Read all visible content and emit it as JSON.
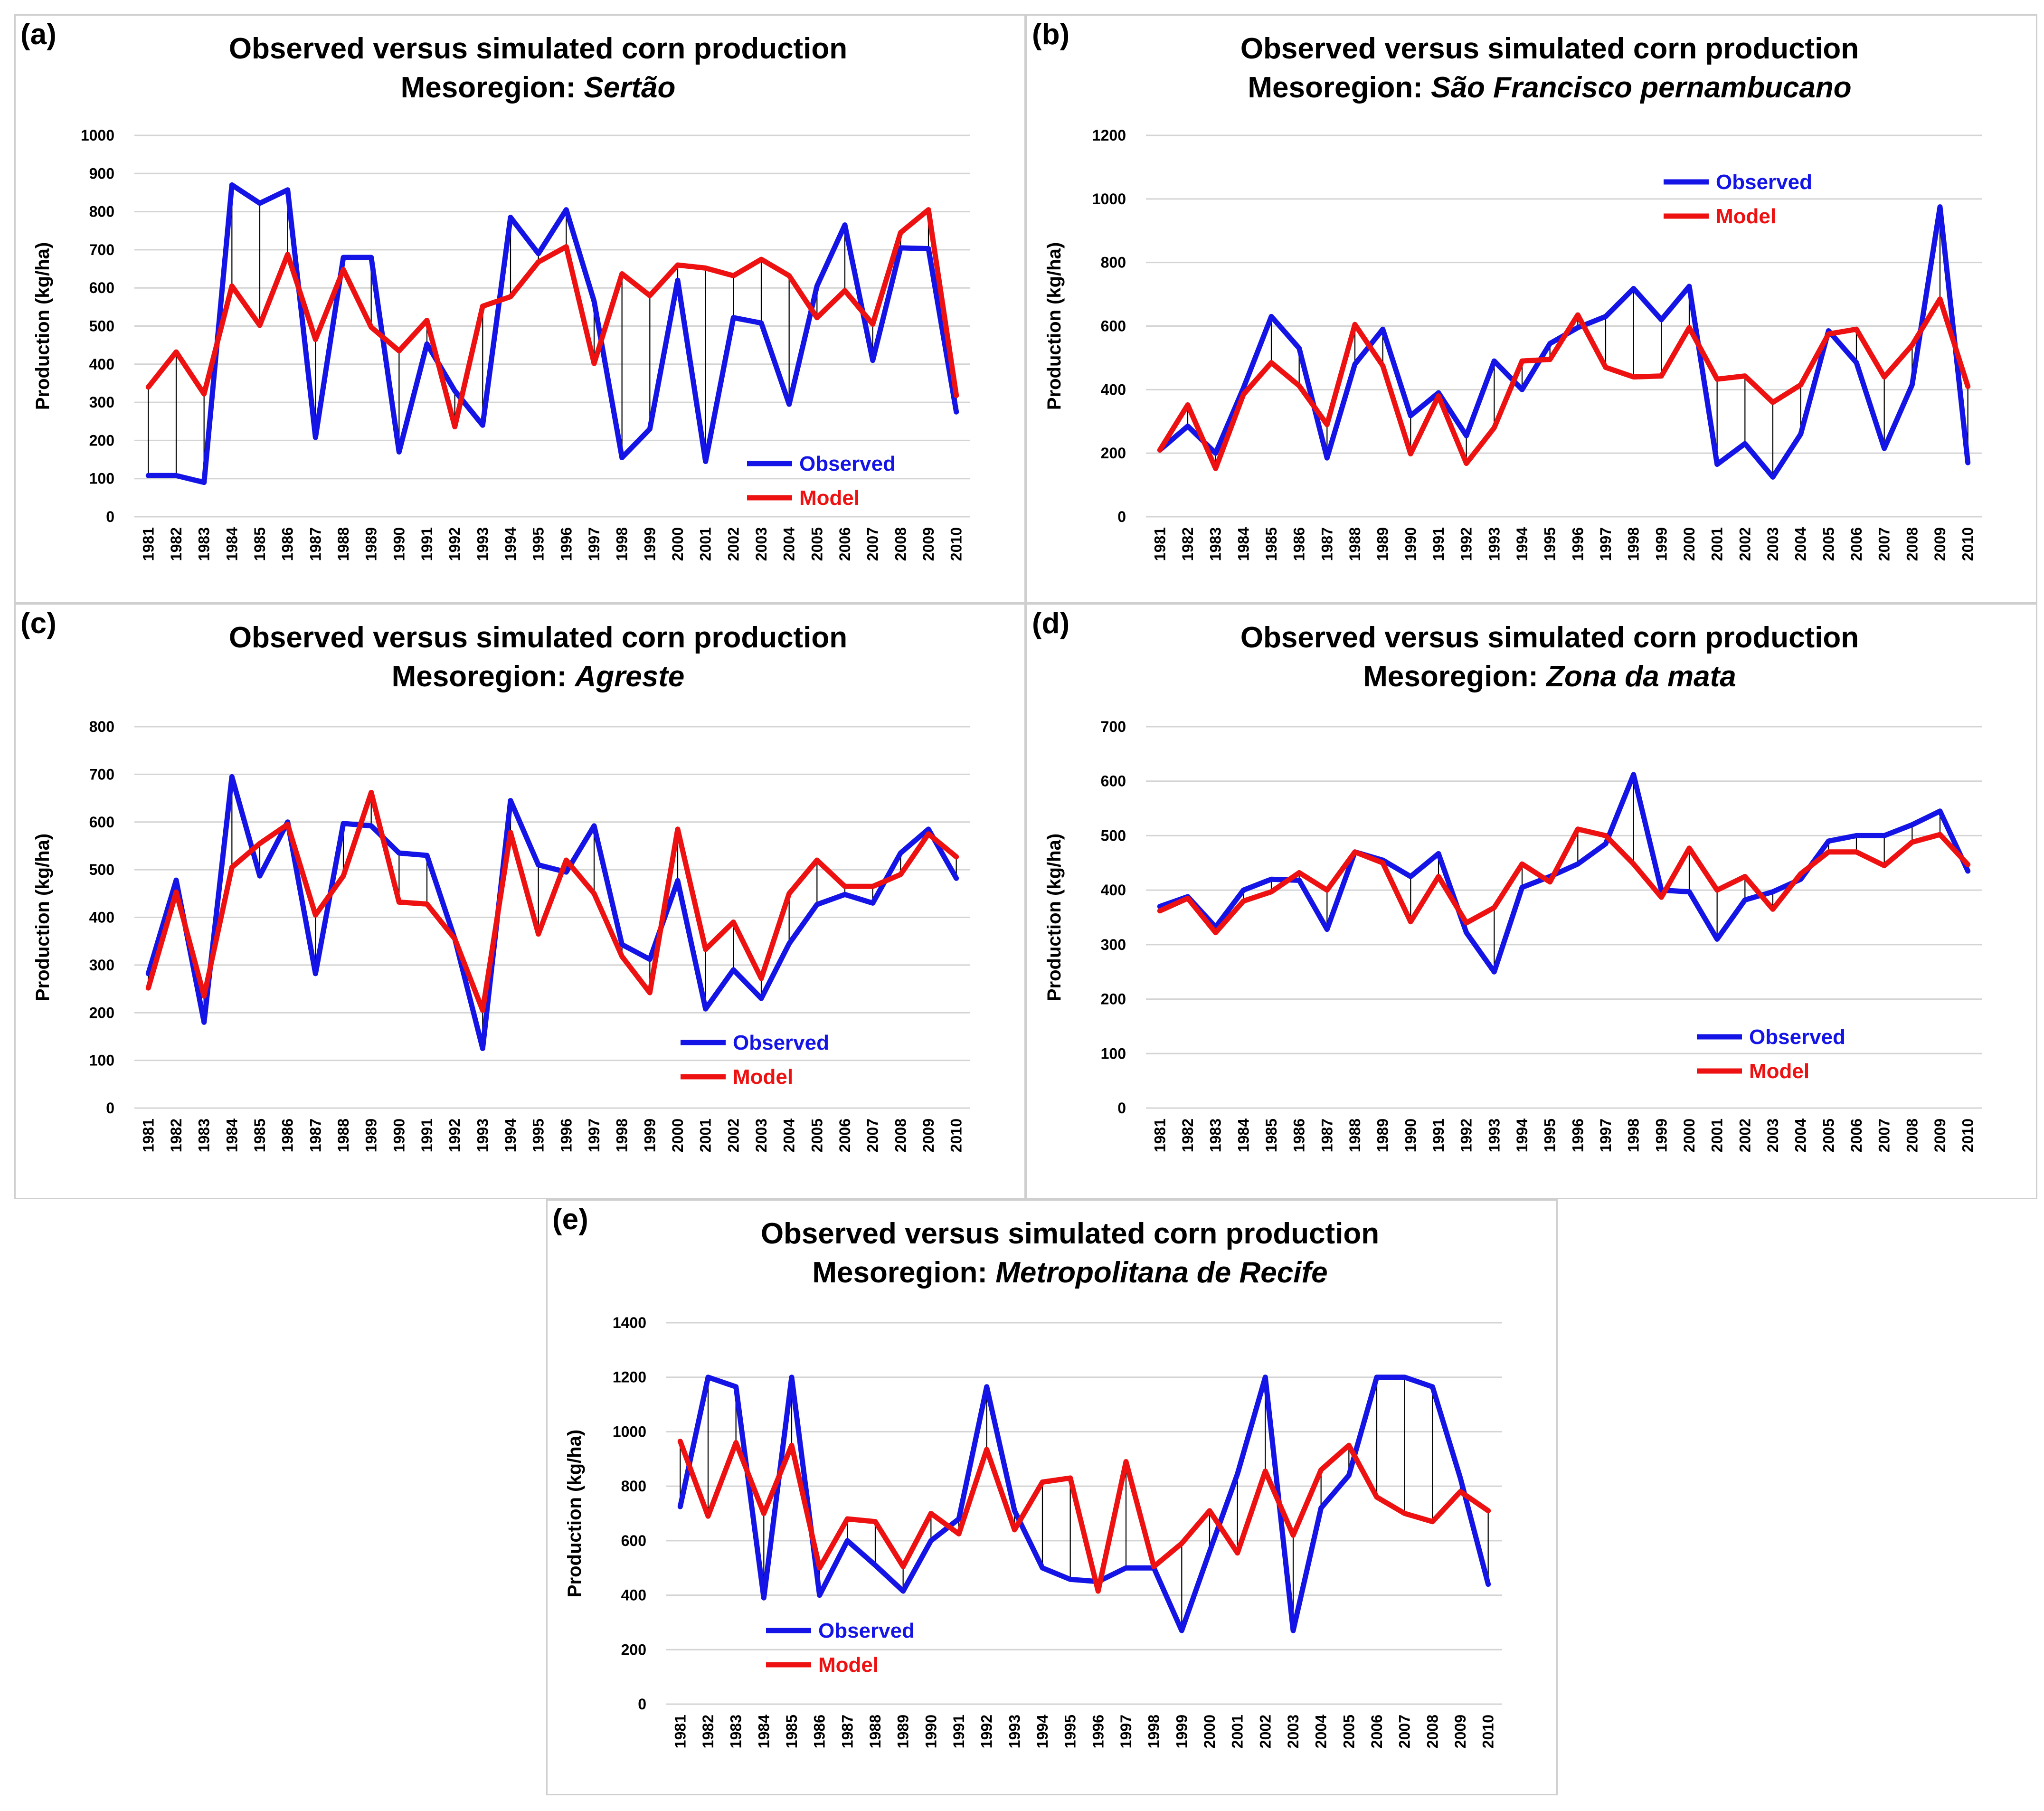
{
  "colors": {
    "observed": "#1414e6",
    "model": "#ee1111",
    "grid": "#d4d4d4",
    "drop": "#000000"
  },
  "chart_data": [
    {
      "id": "a",
      "panel_label": "(a)",
      "type": "line",
      "title": "Observed versus simulated corn production",
      "subtitle_prefix": "Mesoregion: ",
      "subtitle_region": "Sertão",
      "ylabel": "Production (kg/ha)",
      "xlabel": "",
      "ylim": [
        0,
        1000
      ],
      "yticks": [
        0,
        100,
        200,
        300,
        400,
        500,
        600,
        700,
        800,
        900,
        1000
      ],
      "legend": "bottom-right",
      "grid": true,
      "x": [
        "1981",
        "1982",
        "1983",
        "1984",
        "1985",
        "1986",
        "1987",
        "1988",
        "1989",
        "1990",
        "1991",
        "1992",
        "1993",
        "1994",
        "1995",
        "1996",
        "1997",
        "1998",
        "1999",
        "2000",
        "2001",
        "2002",
        "2003",
        "2004",
        "2005",
        "2006",
        "2007",
        "2008",
        "2009",
        "2010"
      ],
      "series": [
        {
          "name": "Observed",
          "values": [
            108,
            108,
            90,
            870,
            822,
            857,
            208,
            680,
            680,
            170,
            453,
            330,
            240,
            785,
            690,
            805,
            565,
            155,
            230,
            620,
            145,
            522,
            508,
            295,
            605,
            765,
            410,
            705,
            703,
            275
          ]
        },
        {
          "name": "Model",
          "values": [
            340,
            432,
            322,
            605,
            502,
            688,
            465,
            648,
            497,
            435,
            515,
            236,
            552,
            577,
            668,
            708,
            402,
            637,
            580,
            660,
            652,
            632,
            675,
            632,
            522,
            593,
            505,
            745,
            805,
            318
          ]
        }
      ]
    },
    {
      "id": "b",
      "panel_label": "(b)",
      "type": "line",
      "title": "Observed versus simulated corn production",
      "subtitle_prefix": "Mesoregion: ",
      "subtitle_region": "São Francisco pernambucano",
      "ylabel": "Production (kg/ha)",
      "xlabel": "",
      "ylim": [
        0,
        1200
      ],
      "yticks": [
        0,
        200,
        400,
        600,
        800,
        1000,
        1200
      ],
      "legend": "top-center",
      "grid": true,
      "x": [
        "1981",
        "1982",
        "1983",
        "1984",
        "1985",
        "1986",
        "1987",
        "1988",
        "1989",
        "1990",
        "1991",
        "1992",
        "1993",
        "1994",
        "1995",
        "1996",
        "1997",
        "1998",
        "1999",
        "2000",
        "2001",
        "2002",
        "2003",
        "2004",
        "2005",
        "2006",
        "2007",
        "2008",
        "2009",
        "2010"
      ],
      "series": [
        {
          "name": "Observed",
          "values": [
            210,
            285,
            200,
            405,
            630,
            530,
            185,
            480,
            590,
            318,
            390,
            255,
            490,
            400,
            545,
            595,
            630,
            718,
            620,
            725,
            165,
            230,
            125,
            260,
            585,
            485,
            215,
            415,
            975,
            170
          ]
        },
        {
          "name": "Model",
          "values": [
            210,
            352,
            152,
            385,
            485,
            412,
            290,
            605,
            475,
            198,
            380,
            168,
            280,
            490,
            495,
            635,
            470,
            440,
            443,
            595,
            433,
            443,
            360,
            415,
            575,
            590,
            440,
            540,
            685,
            410
          ]
        }
      ]
    },
    {
      "id": "c",
      "panel_label": "(c)",
      "type": "line",
      "title": "Observed versus simulated corn production",
      "subtitle_prefix": "Mesoregion: ",
      "subtitle_region": "Agreste",
      "ylabel": "Production (kg/ha)",
      "xlabel": "",
      "ylim": [
        0,
        800
      ],
      "yticks": [
        0,
        100,
        200,
        300,
        400,
        500,
        600,
        700,
        800
      ],
      "legend": "bottom-center",
      "grid": true,
      "x": [
        "1981",
        "1982",
        "1983",
        "1984",
        "1985",
        "1986",
        "1987",
        "1988",
        "1989",
        "1990",
        "1991",
        "1992",
        "1993",
        "1994",
        "1995",
        "1996",
        "1997",
        "1998",
        "1999",
        "2000",
        "2001",
        "2002",
        "2003",
        "2004",
        "2005",
        "2006",
        "2007",
        "2008",
        "2009",
        "2010"
      ],
      "series": [
        {
          "name": "Observed",
          "values": [
            282,
            478,
            180,
            695,
            487,
            600,
            282,
            597,
            592,
            535,
            530,
            355,
            125,
            645,
            510,
            495,
            592,
            343,
            312,
            477,
            208,
            290,
            230,
            345,
            427,
            448,
            430,
            535,
            585,
            482
          ]
        },
        {
          "name": "Model",
          "values": [
            252,
            453,
            235,
            505,
            555,
            595,
            405,
            487,
            662,
            432,
            428,
            355,
            205,
            578,
            365,
            520,
            450,
            318,
            242,
            585,
            333,
            390,
            272,
            450,
            520,
            465,
            465,
            490,
            575,
            527
          ]
        }
      ]
    },
    {
      "id": "d",
      "panel_label": "(d)",
      "type": "line",
      "title": "Observed versus simulated corn production",
      "subtitle_prefix": "Mesoregion: ",
      "subtitle_region": "Zona da mata",
      "ylabel": "Production (kg/ha)",
      "xlabel": "",
      "ylim": [
        0,
        700
      ],
      "yticks": [
        0,
        100,
        200,
        300,
        400,
        500,
        600,
        700
      ],
      "legend": "bottom-center",
      "grid": true,
      "x": [
        "1981",
        "1982",
        "1983",
        "1984",
        "1985",
        "1986",
        "1987",
        "1988",
        "1989",
        "1990",
        "1991",
        "1992",
        "1993",
        "1994",
        "1995",
        "1996",
        "1997",
        "1998",
        "1999",
        "2000",
        "2001",
        "2002",
        "2003",
        "2004",
        "2005",
        "2006",
        "2007",
        "2008",
        "2009",
        "2010"
      ],
      "series": [
        {
          "name": "Observed",
          "values": [
            370,
            388,
            332,
            400,
            420,
            418,
            328,
            470,
            455,
            425,
            467,
            322,
            250,
            405,
            425,
            448,
            485,
            612,
            400,
            397,
            310,
            382,
            397,
            420,
            490,
            500,
            500,
            520,
            545,
            435
          ]
        },
        {
          "name": "Model",
          "values": [
            362,
            385,
            322,
            380,
            397,
            432,
            400,
            470,
            450,
            342,
            425,
            340,
            368,
            448,
            415,
            512,
            500,
            448,
            387,
            477,
            400,
            425,
            365,
            430,
            470,
            470,
            445,
            488,
            502,
            447
          ]
        }
      ]
    },
    {
      "id": "e",
      "panel_label": "(e)",
      "type": "line",
      "title": "Observed versus simulated corn production",
      "subtitle_prefix": "Mesoregion: ",
      "subtitle_region": "Metropolitana de Recife",
      "ylabel": "Production (kg/ha)",
      "xlabel": "",
      "ylim": [
        0,
        1400
      ],
      "yticks": [
        0,
        200,
        400,
        600,
        800,
        1000,
        1200,
        1400
      ],
      "legend": "bottom-left",
      "grid": true,
      "x": [
        "1981",
        "1982",
        "1983",
        "1984",
        "1985",
        "1986",
        "1987",
        "1988",
        "1989",
        "1990",
        "1991",
        "1992",
        "1993",
        "1994",
        "1995",
        "1996",
        "1997",
        "1998",
        "1999",
        "2000",
        "2001",
        "2002",
        "2003",
        "2004",
        "2005",
        "2006",
        "2007",
        "2008",
        "2009",
        "2010"
      ],
      "series": [
        {
          "name": "Observed",
          "values": [
            725,
            1200,
            1165,
            390,
            1200,
            400,
            600,
            510,
            415,
            600,
            680,
            1165,
            710,
            500,
            458,
            450,
            500,
            500,
            270,
            560,
            845,
            1200,
            270,
            720,
            840,
            1200,
            1200,
            1165,
            830,
            440
          ]
        },
        {
          "name": "Model",
          "values": [
            965,
            690,
            960,
            700,
            950,
            500,
            680,
            670,
            505,
            700,
            625,
            935,
            640,
            815,
            830,
            415,
            890,
            505,
            590,
            710,
            555,
            855,
            620,
            860,
            950,
            760,
            700,
            670,
            780,
            710
          ]
        }
      ]
    }
  ]
}
